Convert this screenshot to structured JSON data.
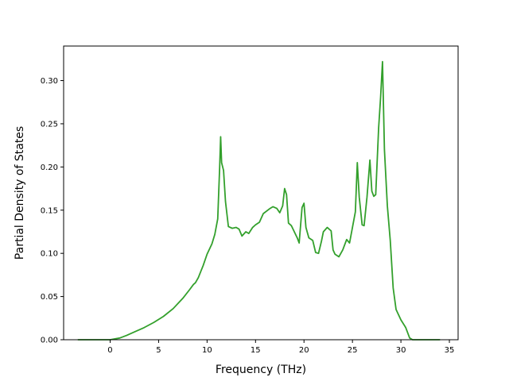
{
  "chart_data": {
    "type": "line",
    "title": "",
    "xlabel": "Frequency (THz)",
    "ylabel": "Partial Density of States",
    "xlim": [
      -4.8,
      35.9
    ],
    "ylim": [
      0.0,
      0.34
    ],
    "xticks": [
      0,
      5,
      10,
      15,
      20,
      25,
      30,
      35
    ],
    "xtick_labels": [
      "0",
      "5",
      "10",
      "15",
      "20",
      "25",
      "30",
      "35"
    ],
    "yticks": [
      0.0,
      0.05,
      0.1,
      0.15,
      0.2,
      0.25,
      0.3
    ],
    "ytick_labels": [
      "0.00",
      "0.05",
      "0.10",
      "0.15",
      "0.20",
      "0.25",
      "0.30"
    ],
    "grid": false,
    "legend": "none",
    "series": [
      {
        "color": "#33a02c",
        "x": [
          -3.3,
          0,
          1,
          1.7,
          2.5,
          3.5,
          4.5,
          5.5,
          6.5,
          7.5,
          8.2,
          8.6,
          8.8,
          9.1,
          9.6,
          10.0,
          10.5,
          10.8,
          11.1,
          11.3,
          11.4,
          11.5,
          11.7,
          11.9,
          12.2,
          12.6,
          13.0,
          13.3,
          13.6,
          14.0,
          14.3,
          14.7,
          15.0,
          15.4,
          15.8,
          16.5,
          16.8,
          17.2,
          17.5,
          17.8,
          18.0,
          18.2,
          18.4,
          18.7,
          19.0,
          19.3,
          19.5,
          19.8,
          20.0,
          20.2,
          20.5,
          20.9,
          21.2,
          21.5,
          21.8,
          22.0,
          22.4,
          22.8,
          23.0,
          23.2,
          23.6,
          24.0,
          24.4,
          24.7,
          25.0,
          25.3,
          25.5,
          25.7,
          26.0,
          26.2,
          26.5,
          26.8,
          27.0,
          27.2,
          27.4,
          27.7,
          27.9,
          28.1,
          28.3,
          28.6,
          28.9,
          29.2,
          29.5,
          30.0,
          30.5,
          30.9,
          31.2,
          31.5,
          34.0
        ],
        "y": [
          0.0,
          0.0,
          0.002,
          0.005,
          0.009,
          0.014,
          0.02,
          0.027,
          0.036,
          0.048,
          0.058,
          0.064,
          0.066,
          0.072,
          0.086,
          0.099,
          0.111,
          0.122,
          0.14,
          0.2,
          0.235,
          0.205,
          0.196,
          0.16,
          0.131,
          0.129,
          0.13,
          0.128,
          0.12,
          0.125,
          0.123,
          0.13,
          0.133,
          0.136,
          0.146,
          0.152,
          0.154,
          0.152,
          0.147,
          0.155,
          0.175,
          0.168,
          0.135,
          0.132,
          0.125,
          0.118,
          0.112,
          0.153,
          0.158,
          0.13,
          0.118,
          0.115,
          0.101,
          0.1,
          0.114,
          0.125,
          0.13,
          0.126,
          0.104,
          0.099,
          0.096,
          0.104,
          0.116,
          0.112,
          0.13,
          0.148,
          0.205,
          0.165,
          0.133,
          0.132,
          0.165,
          0.208,
          0.172,
          0.166,
          0.168,
          0.245,
          0.28,
          0.322,
          0.22,
          0.155,
          0.115,
          0.06,
          0.035,
          0.023,
          0.014,
          0.002,
          0.0,
          0.0,
          0.0
        ]
      }
    ]
  }
}
